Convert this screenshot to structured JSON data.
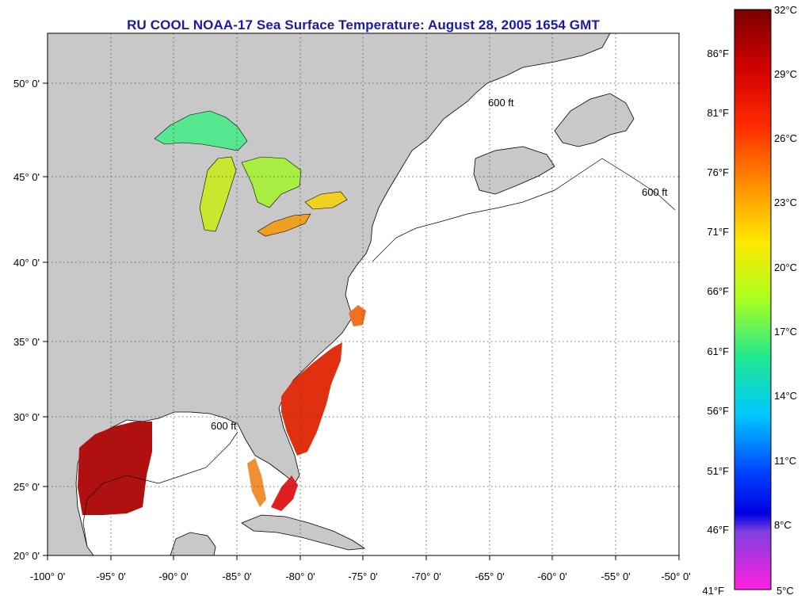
{
  "title": "RU COOL  NOAA-17  Sea Surface Temperature:  August 28, 2005 1654 GMT",
  "map": {
    "lon_range": [
      -100,
      -50
    ],
    "lat_range": [
      20,
      52.5
    ],
    "lon_ticks": [
      "-100° 0'",
      "-95° 0'",
      "-90° 0'",
      "-85° 0'",
      "-80° 0'",
      "-75° 0'",
      "-70° 0'",
      "-65° 0'",
      "-60° 0'",
      "-55° 0'",
      "-50° 0'"
    ],
    "lat_ticks": [
      "20° 0'",
      "25° 0'",
      "30° 0'",
      "35° 0'",
      "40° 0'",
      "45° 0'",
      "50° 0'"
    ],
    "contour_label": "600 ft",
    "land_color": "#c8c8c8",
    "ocean_color": "#ffffff",
    "grid": true
  },
  "colorbar": {
    "celsius": [
      "32°C",
      "29°C",
      "26°C",
      "23°C",
      "20°C",
      "17°C",
      "14°C",
      "11°C",
      "8°C",
      "5°C"
    ],
    "fahrenheit": [
      "86°F",
      "81°F",
      "76°F",
      "71°F",
      "66°F",
      "61°F",
      "56°F",
      "51°F",
      "46°F",
      "41°F"
    ],
    "colors": [
      "#8b0000",
      "#e00000",
      "#ff6a00",
      "#ffd400",
      "#c8ff00",
      "#33e85a",
      "#00d8e8",
      "#0078ff",
      "#1010e0",
      "#b040e0",
      "#ff20e0"
    ]
  }
}
